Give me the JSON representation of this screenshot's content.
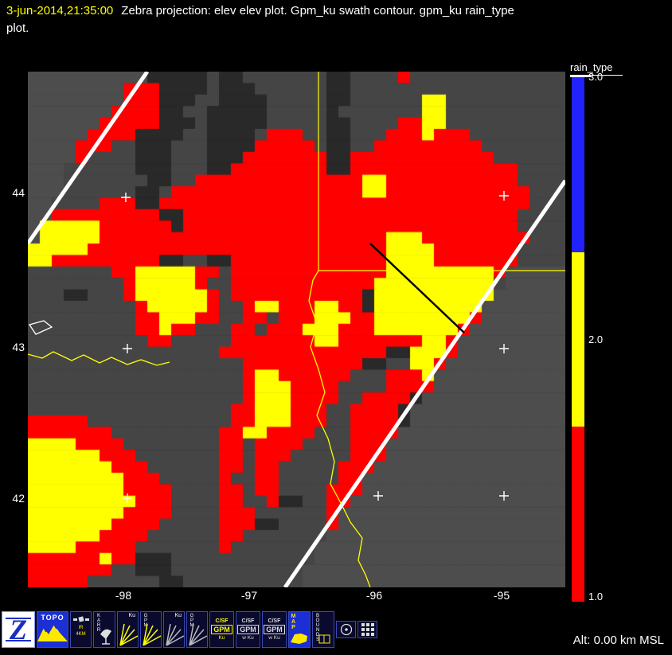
{
  "header": {
    "timestamp": "3-jun-2014,21:35:00",
    "title": "Zebra projection: elev elev  plot.  Gpm_ku swath contour.  gpm_ku rain_type",
    "title_line2": "plot."
  },
  "map": {
    "axis": {
      "lat": [
        "44",
        "43",
        "42"
      ],
      "lon": [
        "-98",
        "-97",
        "-96",
        "-95"
      ]
    },
    "raster": {
      "palette": {
        ".": "#454545",
        "o": "#4d4d4d",
        "d": "#292929",
        "r": "#ff0000",
        "y": "#ffff00"
      },
      "rows": [
        "oooooooooodddd d.dd.......dd....r.............",
        "oooooooorrrdddd.ddd......dd..................",
        "oooooooorrrddd..dddd.....dd......yy..........",
        "ooooooorrrrdd..ddddd.....d.......yy..........",
        "oooooorrrrrddd.ddddd.....dd....rryy..........",
        "ooooorrrrdddd..dddd.rrr..dd...rrryrrr........",
        "oooorrr..ddd...ddddrrrrr.dd..rrrrrrrrr.......",
        "oooor....ddd...dddrrrrrrrddrrrrrrrrrrrr......",
        "ooo......ddd...ddrrrrrrrrddrrrrrrrrrrrrrr....",
        "ooo.......dd..rrrrrrrrrrrrrryyrrrrrrrrrrr....",
        "ooo......dd.rrrrrrrrrrrrrrrryyrrrrrrrrrrrr...",
        "oo....rrrddrrrrrrrrrrrrrrrrrrrrrrrrrrrrrrr...",
        "oorrrrrrrrrddrrrrrrrrrrrrrrrrrrrrrrrrrrrr....",
        "oyyyyyrrrrrrdrrrrrrrrrrrrrrrrrrrrrrrrrrrr....",
        "oyyyyyrrrrrrrrrrrrrrrrrrrrrrrryyyrrrrrrrrr...",
        "yyyyyrrrrrrrrrrrrrrrrrrrrrrrrryyyyrrrrrrr....",
        "yyrrrrrrrrrdd..ddrrrrrrrrrrrrryyyyrrrrrrr....",
        ".......rryyyyyrr.rrrrrrrrrrrrryyyyyyyyyrooooo",
        "........ryyyyyr..rrrrrrrrrrrryyyyyyyyyy.ooooo",
        "...dd...ryyyyyyr.rrrrrrrrrrrdyyyyyyyyyyoooooo",
        ".........ryyyyyr..ryyrrryyrrdyyyyyyyyyooooooo",
        ".........rryyyrr..rr.rrryyyrryyyyyyyyrooooooo",
        ".........rryrr...rr.rrryyyrrryyyyyyyroooooooo",
        "..........rr.....rrrrrrryyrrrrrrryyrooooooooo",
        "................rrrrrrrrrrrrrrddyyyrooooooooo",
        "..................rrrrrrrrrrdd..yyroooooooooo",
        "..................ryyrrrrrr...rrryooooooooooo",
        "..................ryyyrrrr....rrrrooooooooooo",
        "..................ryyyrrrr..rrrrdoooooooooooo",
        ".................rryyyrrr..rrrrdooooooooooooo",
        "rrrrr............rryyyrrr..rrrrdooooooooooooo",
        "rrrrrrr.........rryyrrrr...rrrroooooooooooooo",
        "yyyyrrrr........rr.rrrr....rrrooooooooooooooo",
        "yyyyyyrrr.......rr.rrr.....rrrooooooooooooooo",
        "yyyyyyyrrr......rr.rr.....rrroooooooooooooooo",
        "yyyyyyyyrrr.....r..rr.....rrooooooooooooooooo",
        "yyyyyyyyrrrr....rr.rr....rrrooooooooooooooooo",
        "yyyyyyyyyrrr....rr..rdd..rroooooooooooooooooo",
        "yyyyyyyyrrrr....rrr......rooooooooooooooooooo",
        "yyyyyyyrrrr.....rrrdd....rooooooooooooooooooo",
        "yyyyyyrrrr......rr.......oooooooooooooooooooo",
        "yyyyrrrrr.......r.......ooooooooooooooooooooo",
        "rrrrrryrrddd............ooooooooooooooooooooo",
        "rrrrrrr..ddd...........oooooooooooooooooooooo",
        "rrrrr......dd..........oooooooooooooooooooooo"
      ]
    }
  },
  "colorbar": {
    "title": "rain_type",
    "segments": [
      {
        "color": "#2222ff",
        "label": "3.0"
      },
      {
        "color": "#ffff00",
        "label": "2.0"
      },
      {
        "color": "#ff0000",
        "label": "1.0"
      }
    ]
  },
  "toolbar": {
    "alt_readout": "Alt: 0.00 km MSL",
    "buttons": [
      {
        "name": "zebra-logo-button",
        "kind": "logo",
        "label": "Z"
      },
      {
        "name": "topo-button",
        "kind": "topo",
        "label": "TOPO"
      },
      {
        "name": "ir-4km-button",
        "kind": "sat",
        "lines": [
          "IR",
          "4KM"
        ]
      },
      {
        "name": "karr-radar-button",
        "kind": "dish",
        "label": "KARR"
      },
      {
        "name": "ku-swath-button",
        "kind": "beam",
        "label": "Ku",
        "accent": "#ffff00"
      },
      {
        "name": "gpm-swath-button",
        "kind": "beam",
        "label": "GPM",
        "accent": "#ffff00"
      },
      {
        "name": "ku-swath-alt-button",
        "kind": "beam",
        "label": "Ku",
        "accent": "#bbbbbb"
      },
      {
        "name": "gpm-swath-alt-button",
        "kind": "beam",
        "label": "GPM",
        "accent": "#bbbbbb"
      },
      {
        "name": "csf-gpm-ku-button",
        "kind": "csf",
        "lines": [
          "C/SF",
          "GPM",
          "Ku"
        ],
        "accent": "#ffff00"
      },
      {
        "name": "csf-gpm-wku-button",
        "kind": "csf",
        "lines": [
          "C/SF",
          "GPM",
          "w Ku"
        ],
        "accent": "#dddddd"
      },
      {
        "name": "csf-gpm-wku-button-2",
        "kind": "csf",
        "lines": [
          "C/SF",
          "GPM",
          "w Ku"
        ],
        "accent": "#dddddd"
      },
      {
        "name": "map-button",
        "kind": "map",
        "label": "MAP"
      },
      {
        "name": "bounds-button",
        "kind": "bounds",
        "label": "BOUNDS"
      },
      {
        "name": "overlay-circle-button",
        "kind": "glyph-circle"
      },
      {
        "name": "overlay-grid-button",
        "kind": "glyph-grid"
      }
    ]
  }
}
